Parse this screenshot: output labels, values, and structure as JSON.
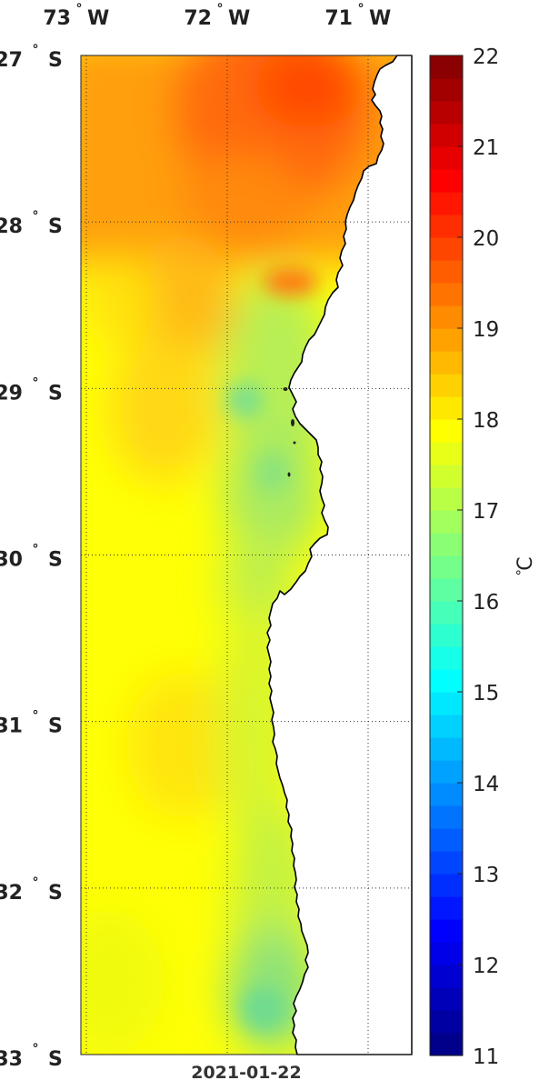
{
  "map": {
    "title": "",
    "lon_labels": [
      {
        "deg": "73",
        "hemi": "W",
        "lon": -73
      },
      {
        "deg": "72",
        "hemi": "W",
        "lon": -72
      },
      {
        "deg": "71",
        "hemi": "W",
        "lon": -71
      }
    ],
    "lat_labels": [
      {
        "deg": "27",
        "hemi": "S",
        "lat": -27
      },
      {
        "deg": "28",
        "hemi": "S",
        "lat": -28
      },
      {
        "deg": "29",
        "hemi": "S",
        "lat": -29
      },
      {
        "deg": "30",
        "hemi": "S",
        "lat": -30
      },
      {
        "deg": "31",
        "hemi": "S",
        "lat": -31
      },
      {
        "deg": "32",
        "hemi": "S",
        "lat": -32
      },
      {
        "deg": "33",
        "hemi": "S",
        "lat": -33
      }
    ],
    "lon_range": [
      -73,
      -70.7
    ],
    "lat_range": [
      -33,
      -27
    ],
    "grid": true,
    "date": "2021-01-22",
    "land_color": "#ffffff",
    "coast_color": "#000000"
  },
  "colorbar": {
    "min": 11,
    "max": 22,
    "ticks": [
      "22",
      "21",
      "20",
      "19",
      "18",
      "17",
      "16",
      "15",
      "14",
      "13",
      "12",
      "11"
    ],
    "unit_deg": "°",
    "unit_letter": "C",
    "colormap": "jet"
  }
}
